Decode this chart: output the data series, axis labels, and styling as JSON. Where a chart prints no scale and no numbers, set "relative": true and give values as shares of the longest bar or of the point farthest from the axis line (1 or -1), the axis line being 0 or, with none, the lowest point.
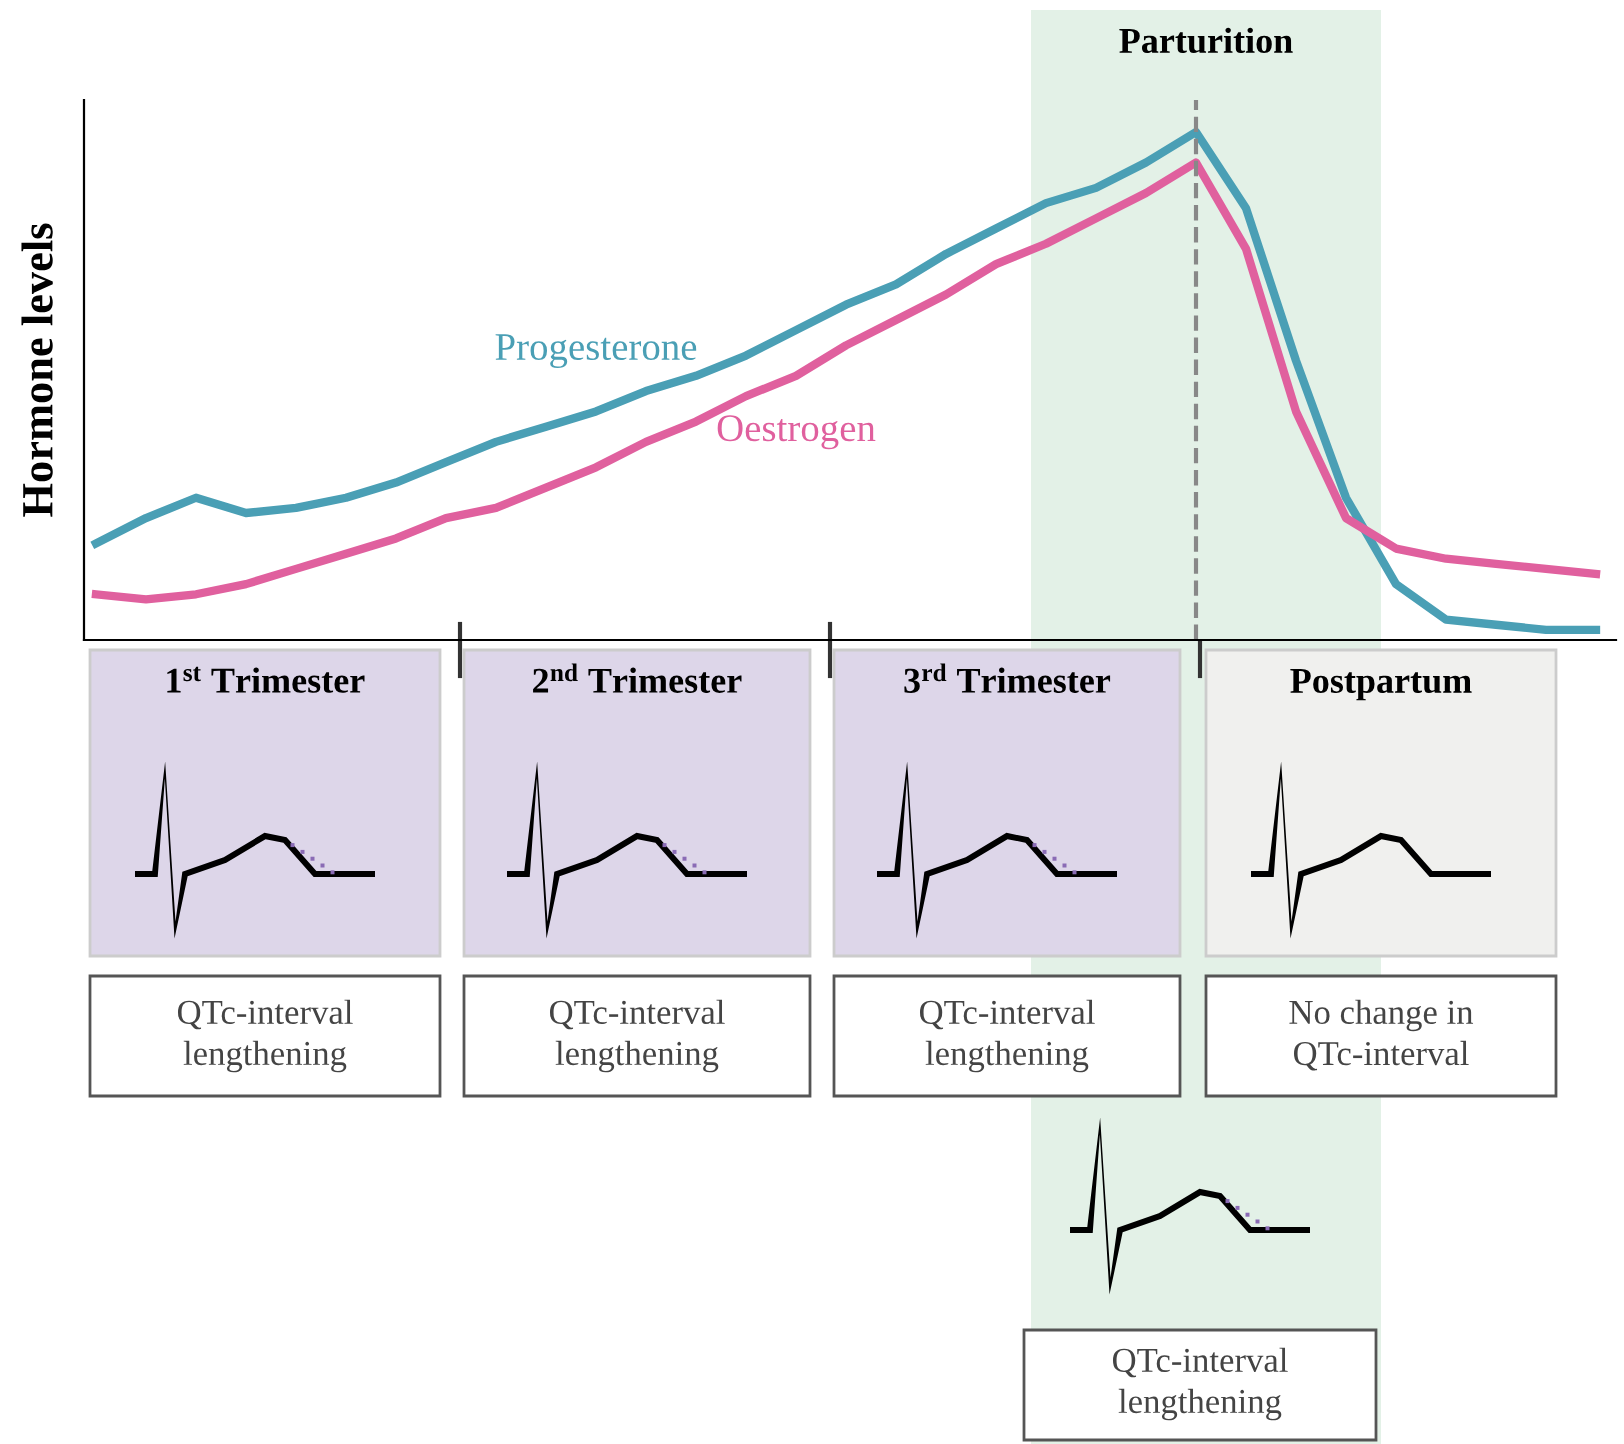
{
  "chart_data": {
    "type": "line",
    "relative": true,
    "categories": [
      null,
      null,
      null,
      null,
      null,
      null,
      null,
      null,
      null,
      null,
      null,
      null,
      null,
      null,
      null,
      null,
      null,
      null,
      null,
      null,
      null,
      null,
      null,
      null,
      null,
      null,
      null,
      null,
      null,
      null,
      null
    ],
    "ylabel": "Hormone levels",
    "series": [
      {
        "name": "Progesterone",
        "color": "#4a9fb5",
        "values": [
          0.19,
          0.24,
          0.28,
          0.25,
          0.26,
          0.28,
          0.31,
          0.35,
          0.39,
          0.42,
          0.45,
          0.49,
          0.52,
          0.56,
          0.61,
          0.66,
          0.7,
          0.76,
          0.81,
          0.86,
          0.89,
          0.94,
          1,
          0.85,
          0.55,
          0.28,
          0.11,
          0.04,
          0.03,
          0.02,
          0.02
        ]
      },
      {
        "name": "Oestrogen",
        "color": "#e0609e",
        "values": [
          0.09,
          0.08,
          0.09,
          0.11,
          0.14,
          0.17,
          0.2,
          0.24,
          0.26,
          0.3,
          0.34,
          0.39,
          0.43,
          0.48,
          0.52,
          0.58,
          0.63,
          0.68,
          0.74,
          0.78,
          0.83,
          0.88,
          0.94,
          0.77,
          0.45,
          0.24,
          0.18,
          0.16,
          0.15,
          0.14,
          0.13
        ]
      }
    ],
    "annotations": [
      "Parturition",
      "1$^{st}$ Trimester",
      "2$^{nd}$ Trimester",
      "3$^{rd}$ Trimester",
      "Postpartum",
      "QTc-interval\nlengthening",
      "QTc-interval\nlengthening",
      "QTc-interval\nlengthening",
      "No change in\nQTc-interval",
      "QTc-interval\nlengthening"
    ],
    "legend": false
  }
}
